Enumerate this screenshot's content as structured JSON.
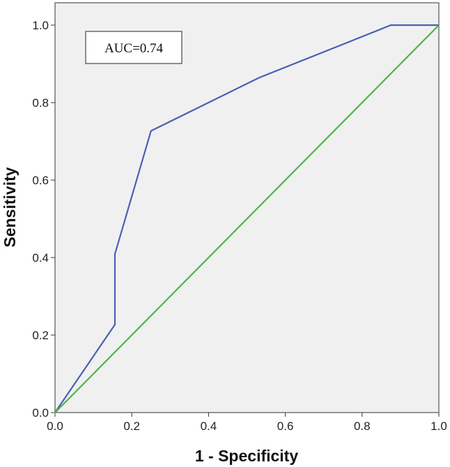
{
  "chart_data": {
    "type": "line",
    "title": "",
    "xlabel": "1 - Specificity",
    "ylabel": "Sensitivity",
    "xlim": [
      0,
      1
    ],
    "ylim": [
      0,
      1
    ],
    "xticks": [
      "0.0",
      "0.2",
      "0.4",
      "0.6",
      "0.8",
      "1.0"
    ],
    "yticks": [
      "0.0",
      "0.2",
      "0.4",
      "0.6",
      "0.8",
      "1.0"
    ],
    "grid": false,
    "background_color": "#f0f0f0",
    "annotation": "AUC=0.74",
    "series": [
      {
        "color": "#4a5fb5",
        "x": [
          0.0,
          0.156,
          0.156,
          0.25,
          0.531,
          0.875,
          1.0
        ],
        "y": [
          0.0,
          0.227,
          0.409,
          0.727,
          0.864,
          1.0,
          1.0
        ]
      },
      {
        "color": "#4fb34a",
        "x": [
          0.0,
          1.0
        ],
        "y": [
          0.0,
          1.0
        ]
      }
    ]
  }
}
